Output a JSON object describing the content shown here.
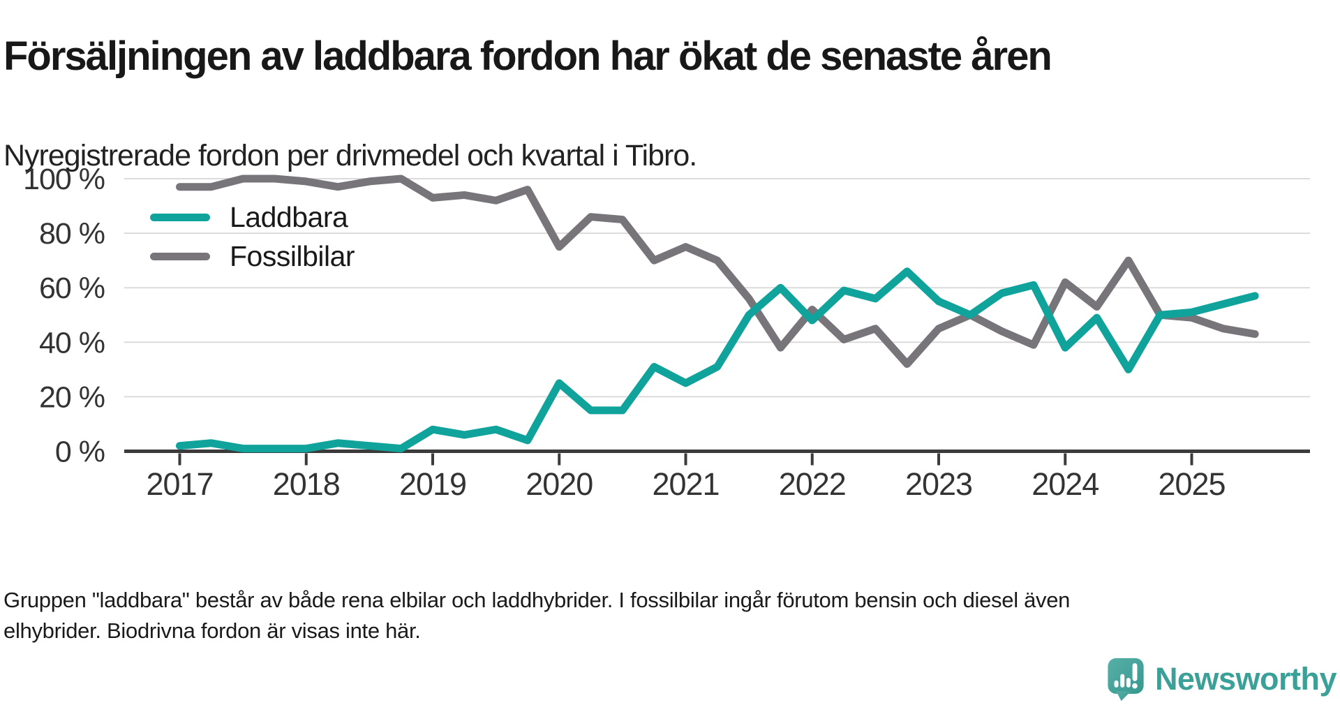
{
  "header": {
    "title": "Försäljningen av laddbara fordon har ökat de senaste åren",
    "subtitle": "Nyregistrerade fordon per drivmedel och kvartal i Tibro."
  },
  "chart_data": {
    "type": "line",
    "title": "Nyregistrerade fordon per drivmedel och kvartal i Tibro",
    "x_unit": "quarter",
    "x_start": "2017 Q1",
    "x_end": "2025 Q3",
    "points_per_year": 4,
    "x_tick_labels": [
      "2017",
      "2018",
      "2019",
      "2020",
      "2021",
      "2022",
      "2023",
      "2024",
      "2025"
    ],
    "y_ticks": [
      {
        "value": 100,
        "label": "100 %"
      },
      {
        "value": 80,
        "label": "80 %"
      },
      {
        "value": 60,
        "label": "60 %"
      },
      {
        "value": 40,
        "label": "40 %"
      },
      {
        "value": 20,
        "label": "20 %"
      },
      {
        "value": 0,
        "label": "0 %"
      }
    ],
    "ylim": [
      0,
      100
    ],
    "grid": "horizontal",
    "legend_position": "top-left-inside",
    "series": [
      {
        "name": "Laddbara",
        "color": "#10A39B",
        "values": [
          2,
          3,
          1,
          1,
          1,
          3,
          2,
          1,
          8,
          6,
          8,
          4,
          25,
          15,
          15,
          31,
          25,
          31,
          50,
          60,
          48,
          59,
          56,
          66,
          55,
          50,
          58,
          61,
          38,
          49,
          30,
          50,
          51,
          54,
          57
        ]
      },
      {
        "name": "Fossilbilar",
        "color": "#77757A",
        "values": [
          97,
          97,
          100,
          100,
          99,
          97,
          99,
          100,
          93,
          94,
          92,
          96,
          75,
          86,
          85,
          70,
          75,
          70,
          56,
          38,
          52,
          41,
          45,
          32,
          45,
          50,
          44,
          39,
          62,
          53,
          70,
          50,
          49,
          45,
          43
        ]
      }
    ]
  },
  "footer": {
    "lines": [
      "Gruppen \"laddbara\" består av både rena elbilar och laddhybrider. I fossilbilar ingår förutom bensin och diesel även",
      "elhybrider. Biodrivna fordon är visas inte här."
    ]
  },
  "logo": {
    "text": "Newsworthy",
    "icon": "newsworthy-bubble-chart-icon",
    "color": "#3BA198"
  }
}
